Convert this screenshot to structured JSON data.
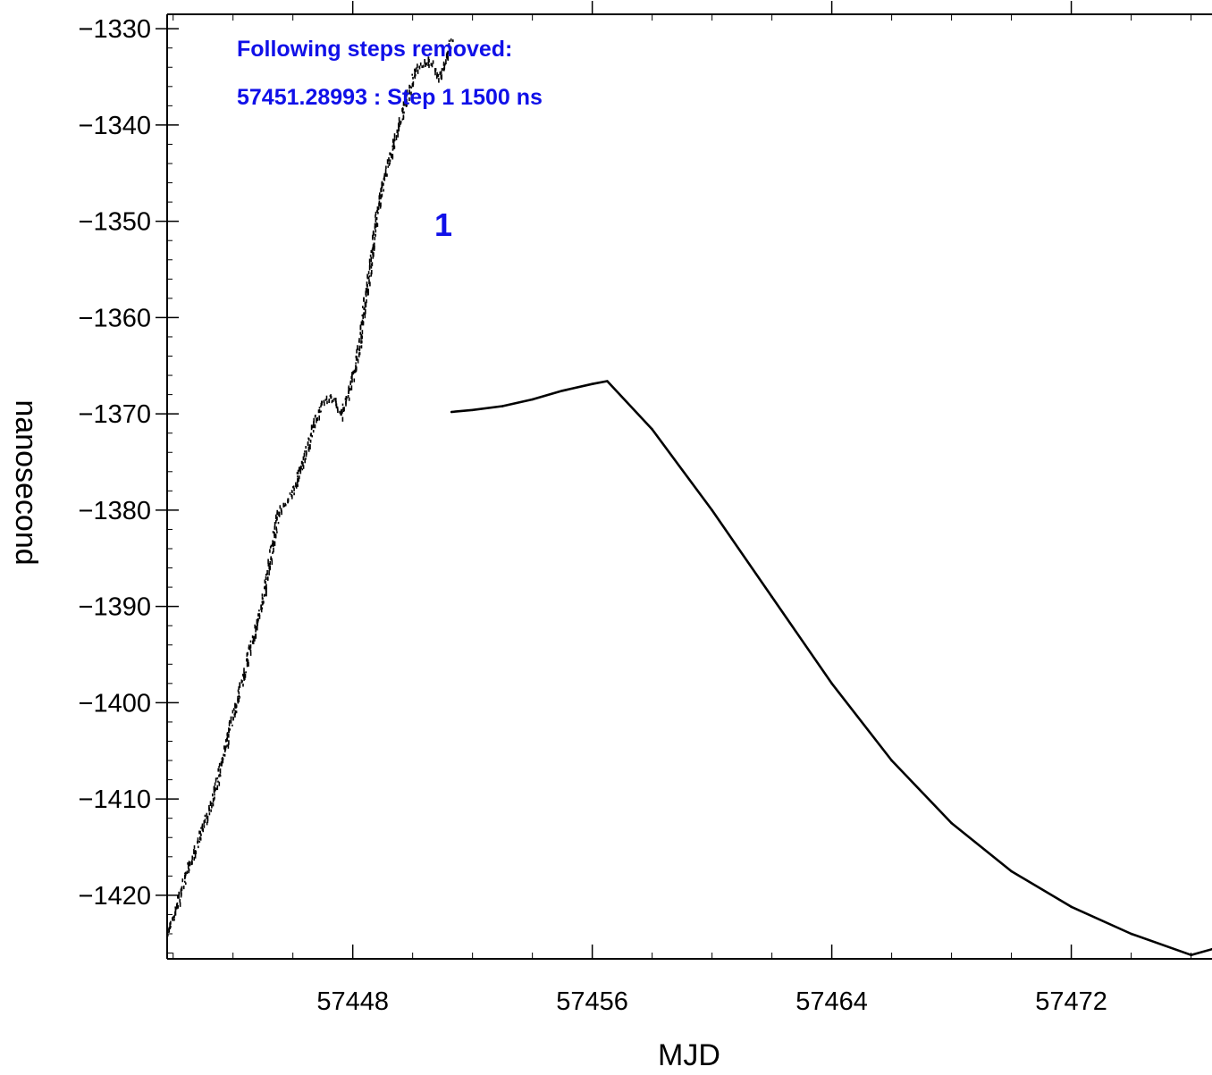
{
  "chart_data": {
    "type": "line",
    "title": "",
    "xlabel": "MJD",
    "ylabel": "nanosecond",
    "xlim": [
      57441.8,
      57476.7
    ],
    "ylim": [
      -1426.6,
      -1328.5
    ],
    "x_ticks": [
      57448,
      57456,
      57464,
      57472
    ],
    "x_tick_labels": [
      "57448",
      "57456",
      "57464",
      "57472"
    ],
    "y_ticks": [
      -1330,
      -1340,
      -1350,
      -1360,
      -1370,
      -1380,
      -1390,
      -1400,
      -1410,
      -1420
    ],
    "y_tick_labels": [
      "−1330",
      "−1340",
      "−1350",
      "−1360",
      "−1370",
      "−1380",
      "−1390",
      "−1400",
      "−1410",
      "−1420"
    ],
    "grid": false,
    "series": [
      {
        "color": "#000000",
        "style": "noisy-dots",
        "x": [
          57441.8,
          57442.5,
          57443.3,
          57444.0,
          57444.5,
          57445.0,
          57445.5,
          57446.0,
          57446.5,
          57446.9,
          57447.3,
          57447.6,
          57447.8,
          57448.0,
          57448.2,
          57448.4,
          57448.6,
          57448.8,
          57449.0,
          57449.5,
          57450.1,
          57450.5,
          57450.9,
          57451.1,
          57451.3
        ],
        "y": [
          -1424,
          -1417,
          -1410,
          -1401,
          -1395,
          -1389,
          -1380,
          -1378,
          -1373,
          -1369,
          -1368,
          -1370,
          -1368,
          -1366,
          -1363,
          -1358,
          -1354,
          -1349,
          -1346,
          -1340,
          -1334,
          -1333,
          -1335,
          -1333,
          -1331
        ]
      },
      {
        "color": "#000000",
        "style": "line",
        "x": [
          57451.3,
          57452.0,
          57453.0,
          57454.0,
          57455.0,
          57456.0,
          57456.5,
          57458.0,
          57460.0,
          57462.0,
          57464.0,
          57466.0,
          57468.0,
          57470.0,
          57472.0,
          57474.0,
          57476.0,
          57476.7
        ],
        "y": [
          -1369.8,
          -1369.6,
          -1369.2,
          -1368.5,
          -1367.6,
          -1366.9,
          -1366.6,
          -1371.6,
          -1380.0,
          -1389.0,
          -1398.0,
          -1406.0,
          -1412.5,
          -1417.5,
          -1421.2,
          -1424.0,
          -1426.2,
          -1425.6
        ]
      }
    ],
    "annotations": {
      "header": "Following steps removed:",
      "step_line": "57451.28993 : Step 1 1500 ns",
      "step_marker": "1",
      "color": "#1010e8"
    }
  }
}
